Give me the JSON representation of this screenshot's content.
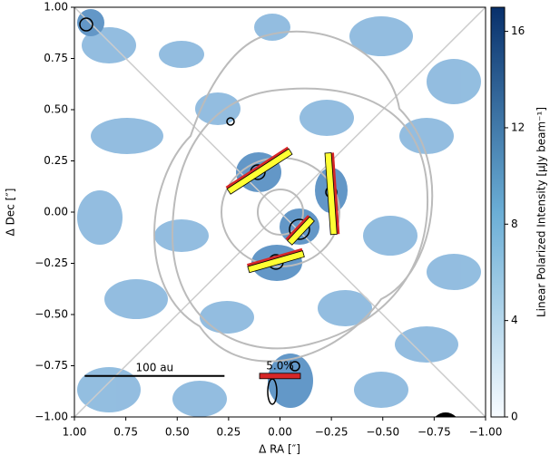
{
  "chart_data": {
    "type": "polarization_map",
    "xlabel": "Δ RA [″]",
    "ylabel": "Δ Dec [″]",
    "xlim": [
      1.0,
      -1.0
    ],
    "ylim": [
      -1.0,
      1.0
    ],
    "xticks": [
      {
        "value": 1.0,
        "label": "1.00"
      },
      {
        "value": 0.75,
        "label": "0.75"
      },
      {
        "value": 0.5,
        "label": "0.50"
      },
      {
        "value": 0.25,
        "label": "0.25"
      },
      {
        "value": 0.0,
        "label": "0.00"
      },
      {
        "value": -0.25,
        "label": "−0.25"
      },
      {
        "value": -0.5,
        "label": "−0.50"
      },
      {
        "value": -0.75,
        "label": "−0.75"
      },
      {
        "value": -1.0,
        "label": "−1.00"
      }
    ],
    "yticks": [
      {
        "value": -1.0,
        "label": "−1.00"
      },
      {
        "value": -0.75,
        "label": "−0.75"
      },
      {
        "value": -0.5,
        "label": "−0.50"
      },
      {
        "value": -0.25,
        "label": "−0.25"
      },
      {
        "value": 0.0,
        "label": "0.00"
      },
      {
        "value": 0.25,
        "label": "0.25"
      },
      {
        "value": 0.5,
        "label": "0.50"
      },
      {
        "value": 0.75,
        "label": "0.75"
      },
      {
        "value": 1.0,
        "label": "1.00"
      }
    ],
    "colorbar": {
      "label": "Linear Polarized Intensity [μJy beam⁻¹]",
      "lim": [
        0,
        17
      ],
      "ticks": [
        0,
        4,
        8,
        12,
        16
      ],
      "colors": [
        "#f7fbff",
        "#08306b"
      ]
    },
    "vectors": [
      {
        "x": 0.1,
        "y": 0.2,
        "pa": 123,
        "p": 9
      },
      {
        "x": -0.25,
        "y": 0.09,
        "pa": 4,
        "p": 10
      },
      {
        "x": -0.1,
        "y": -0.09,
        "pa": 137,
        "p": 4
      },
      {
        "x": 0.02,
        "y": -0.24,
        "pa": 106,
        "p": 7
      }
    ],
    "vector_color": "#ffff33",
    "vector_edge": "#d62728",
    "scale_bar": {
      "label": "100 au",
      "x": [
        0.95,
        0.27
      ],
      "y": -0.8
    },
    "vector_scale": {
      "label": "5.0%",
      "p": 5.0,
      "x": 0.0,
      "y": -0.8
    }
  }
}
